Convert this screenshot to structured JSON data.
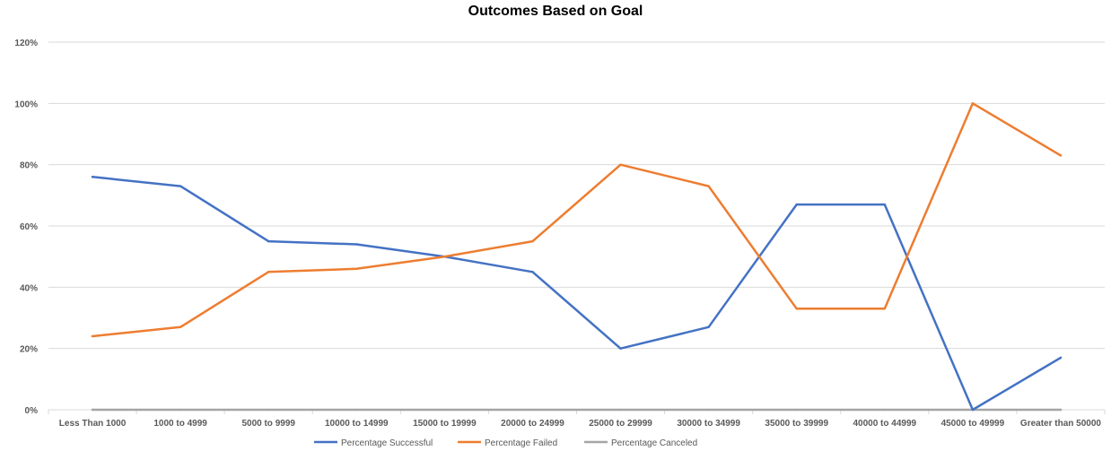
{
  "chart_data": {
    "type": "line",
    "title": "Outcomes Based on Goal",
    "xlabel": "",
    "ylabel": "",
    "ylim": [
      0,
      1.2
    ],
    "y_ticks": [
      0,
      0.2,
      0.4,
      0.6,
      0.8,
      1.0,
      1.2
    ],
    "y_tick_labels": [
      "0%",
      "20%",
      "40%",
      "60%",
      "80%",
      "100%",
      "120%"
    ],
    "grid": true,
    "legend": "bottom",
    "categories": [
      "Less Than 1000",
      "1000 to 4999",
      "5000 to 9999",
      "10000 to 14999",
      "15000 to 19999",
      "20000 to 24999",
      "25000 to 29999",
      "30000 to 34999",
      "35000 to 39999",
      "40000 to 44999",
      "45000 to 49999",
      "Greater than 50000"
    ],
    "series": [
      {
        "name": "Percentage Successful",
        "color": "#4472C4",
        "values": [
          0.76,
          0.73,
          0.55,
          0.54,
          0.5,
          0.45,
          0.2,
          0.27,
          0.67,
          0.67,
          0.0,
          0.17
        ]
      },
      {
        "name": "Percentage Failed",
        "color": "#ED7D31",
        "values": [
          0.24,
          0.27,
          0.45,
          0.46,
          0.5,
          0.55,
          0.8,
          0.73,
          0.33,
          0.33,
          1.0,
          0.83
        ]
      },
      {
        "name": "Percentage Canceled",
        "color": "#A5A5A5",
        "values": [
          0,
          0,
          0,
          0,
          0,
          0,
          0,
          0,
          0,
          0,
          0,
          0
        ]
      }
    ]
  }
}
